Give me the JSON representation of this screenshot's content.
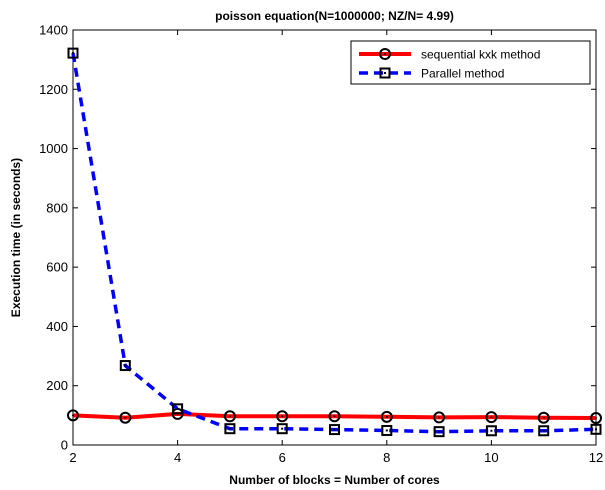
{
  "chart_data": {
    "type": "line",
    "title": "poisson equation(N=1000000; NZ/N= 4.99)",
    "xlabel": "Number of blocks = Number of cores",
    "ylabel": "Execution time (in seconds)",
    "xlim": [
      2,
      12
    ],
    "ylim": [
      0,
      1400
    ],
    "xticks": [
      2,
      4,
      6,
      8,
      10,
      12
    ],
    "yticks": [
      0,
      200,
      400,
      600,
      800,
      1000,
      1200,
      1400
    ],
    "grid": false,
    "legend_position": "top-right",
    "x": [
      2,
      3,
      4,
      5,
      6,
      7,
      8,
      9,
      10,
      11,
      12
    ],
    "series": [
      {
        "name": "sequential kxk method",
        "color": "#ff0000",
        "line_style": "solid",
        "marker": "circle",
        "values": [
          100,
          92,
          105,
          97,
          97,
          97,
          95,
          93,
          94,
          92,
          91
        ]
      },
      {
        "name": "Parallel method",
        "color": "#0000ff",
        "line_style": "dashed",
        "marker": "square",
        "values": [
          1322,
          268,
          122,
          55,
          55,
          52,
          49,
          45,
          48,
          48,
          53
        ]
      }
    ]
  }
}
